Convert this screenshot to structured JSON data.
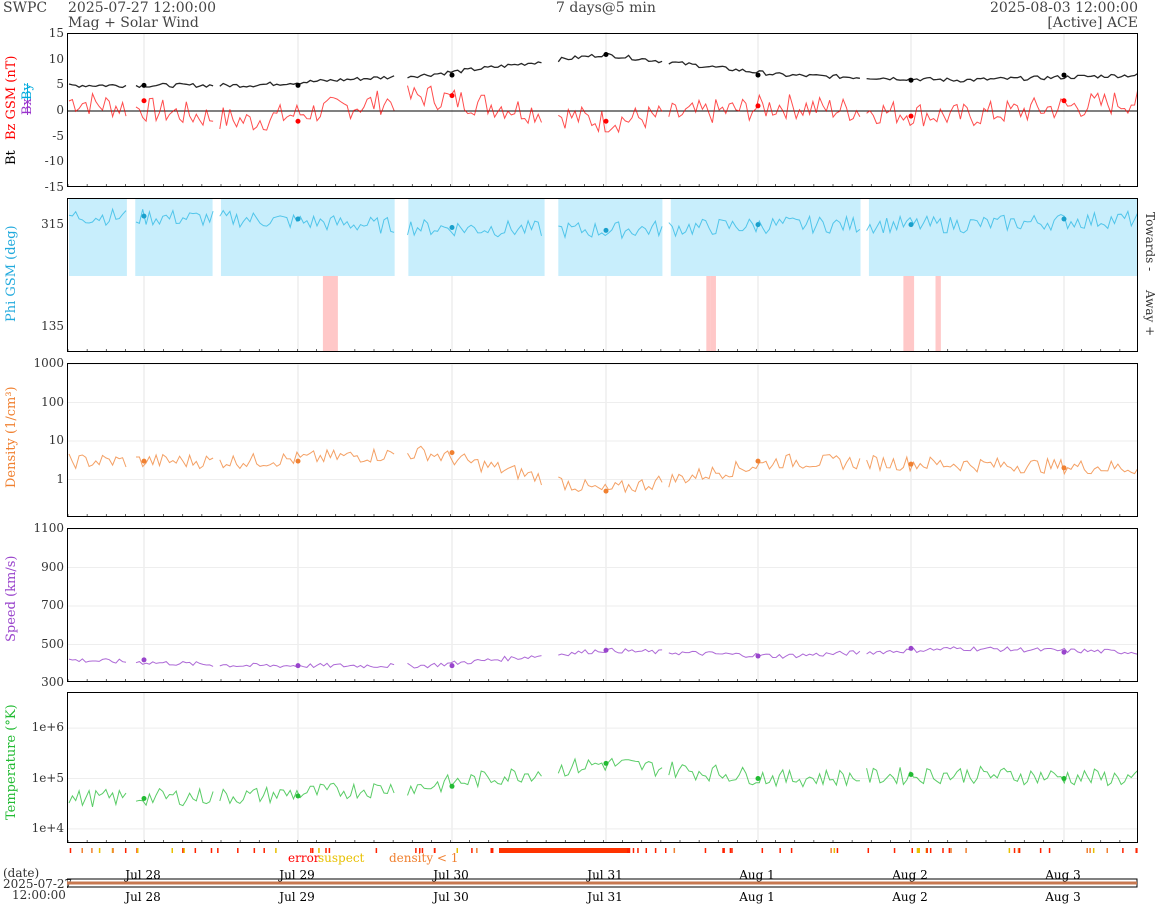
{
  "header": {
    "brand": "SWPC",
    "start": "2025-07-27 12:00:00",
    "subtitle": "Mag + Solar Wind",
    "range": "7 days@5 min",
    "end": "2025-08-03 12:00:00",
    "source": "[Active] ACE"
  },
  "panels": {
    "mag": {
      "ylabel_bt": "Bt",
      "ylabel_bz": "Bz GSM (nT)",
      "legend_bx": "Bx",
      "legend_by": "By",
      "ticks": [
        "15",
        "10",
        "5",
        "0",
        "-5",
        "-10",
        "-15"
      ]
    },
    "phi": {
      "ylabel": "Phi GSM (deg)",
      "ticks": [
        "315",
        "135"
      ],
      "towards": "Towards -",
      "away": "Away +"
    },
    "density": {
      "ylabel": "Density (1/cm³)",
      "ticks": [
        "1000",
        "100",
        "10",
        "1"
      ]
    },
    "speed": {
      "ylabel": "Speed (km/s)",
      "ticks": [
        "1100",
        "900",
        "700",
        "500",
        "300"
      ]
    },
    "temp": {
      "ylabel": "Temperature (°K)",
      "ticks": [
        "1e+6",
        "1e+5",
        "1e+4"
      ]
    }
  },
  "quality": {
    "error": "error",
    "suspect": "suspect",
    "density": "density < 1"
  },
  "timeline": {
    "label": "(date)",
    "start_date": "2025-07-27",
    "start_time": "12:00:00"
  },
  "xticks": [
    "Jul 28",
    "Jul 29",
    "Jul 30",
    "Jul 31",
    "Aug 1",
    "Aug 2",
    "Aug 3"
  ],
  "colors": {
    "bt": "#000000",
    "bz": "#ff0000",
    "by": "#00aadd",
    "bx": "#9933cc",
    "phi_fill": "#c8eefc",
    "phi_away": "#ffc8c8",
    "density": "#f08030",
    "speed": "#9944cc",
    "temp": "#22bb33"
  },
  "chart_data": [
    {
      "type": "line",
      "title": "Mag",
      "x": [
        "Jul 28",
        "Jul 29",
        "Jul 30",
        "Jul 31",
        "Aug 1",
        "Aug 2",
        "Aug 3"
      ],
      "series": [
        {
          "name": "Bt",
          "values": [
            5,
            5,
            7,
            11,
            7,
            6,
            7
          ]
        },
        {
          "name": "Bz",
          "values": [
            2,
            -2,
            3,
            -2,
            1,
            -1,
            2
          ]
        }
      ],
      "ylabel": "Bz GSM (nT)",
      "ylim": [
        -15,
        15
      ]
    },
    {
      "type": "scatter",
      "title": "Phi",
      "x": [
        "Jul 28",
        "Jul 29",
        "Jul 30",
        "Jul 31",
        "Aug 1",
        "Aug 2",
        "Aug 3"
      ],
      "values": [
        330,
        325,
        310,
        305,
        315,
        315,
        325
      ],
      "ylabel": "Phi GSM (deg)",
      "ylim": [
        90,
        360
      ]
    },
    {
      "type": "line",
      "title": "Density",
      "x": [
        "Jul 28",
        "Jul 29",
        "Jul 30",
        "Jul 31",
        "Aug 1",
        "Aug 2",
        "Aug 3"
      ],
      "values": [
        3,
        3,
        5,
        0.5,
        3,
        2.5,
        2
      ],
      "ylabel": "Density (1/cm³)",
      "ylim": [
        0.1,
        1000
      ],
      "scale": "log"
    },
    {
      "type": "line",
      "title": "Speed",
      "x": [
        "Jul 28",
        "Jul 29",
        "Jul 30",
        "Jul 31",
        "Aug 1",
        "Aug 2",
        "Aug 3"
      ],
      "values": [
        420,
        390,
        390,
        470,
        440,
        480,
        460
      ],
      "ylabel": "Speed (km/s)",
      "ylim": [
        300,
        1100
      ]
    },
    {
      "type": "line",
      "title": "Temperature",
      "x": [
        "Jul 28",
        "Jul 29",
        "Jul 30",
        "Jul 31",
        "Aug 1",
        "Aug 2",
        "Aug 3"
      ],
      "values": [
        40000,
        45000,
        70000,
        200000,
        100000,
        120000,
        100000
      ],
      "ylabel": "Temperature (°K)",
      "ylim": [
        5000,
        5000000
      ],
      "scale": "log"
    }
  ]
}
